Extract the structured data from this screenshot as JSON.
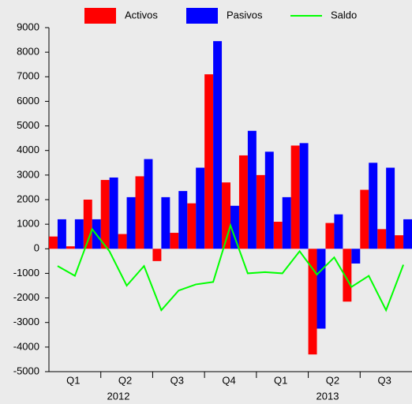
{
  "chart_data": {
    "type": "bar",
    "categories": [
      null,
      null,
      null,
      null,
      null,
      null,
      null,
      null,
      null,
      null,
      null,
      null,
      null,
      null,
      null,
      null,
      null,
      null,
      null,
      null,
      null
    ],
    "quarter_labels": [
      "Q1",
      "Q2",
      "Q3",
      "Q4",
      "Q1",
      "Q2",
      "Q3"
    ],
    "year_labels": [
      "2012",
      "2013"
    ],
    "series": [
      {
        "name": "Activos",
        "color": "#ff0000",
        "type": "bar",
        "values": [
          500,
          100,
          2000,
          2800,
          600,
          2950,
          -500,
          650,
          1850,
          7100,
          2700,
          3800,
          3000,
          1100,
          4200,
          -4300,
          1050,
          -2150,
          2400,
          800,
          550
        ]
      },
      {
        "name": "Pasivos",
        "color": "#0000ff",
        "type": "bar",
        "values": [
          1200,
          1200,
          1200,
          2900,
          2100,
          3650,
          2100,
          2350,
          3300,
          8450,
          1750,
          4800,
          3950,
          2100,
          4300,
          -3250,
          1400,
          -600,
          3500,
          3300,
          1200
        ]
      },
      {
        "name": "Saldo",
        "color": "#00ff00",
        "type": "line",
        "values": [
          -700,
          -1100,
          800,
          -100,
          -1500,
          -700,
          -2500,
          -1700,
          -1450,
          -1350,
          950,
          -1000,
          -950,
          -1000,
          -100,
          -1050,
          -350,
          -1550,
          -1100,
          -2500,
          -650
        ]
      }
    ],
    "ylim": [
      -5000,
      9000
    ],
    "yticks": [
      -5000,
      -4000,
      -3000,
      -2000,
      -1000,
      0,
      1000,
      2000,
      3000,
      4000,
      5000,
      6000,
      7000,
      8000,
      9000
    ],
    "legend": "top"
  }
}
